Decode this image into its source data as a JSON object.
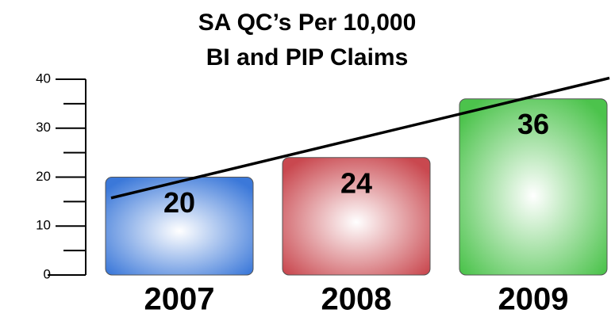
{
  "chart_data": {
    "type": "bar",
    "title": [
      "SA QC’s Per 10,000",
      "BI and PIP Claims"
    ],
    "categories": [
      "2007",
      "2008",
      "2009"
    ],
    "values": [
      20,
      24,
      36
    ],
    "colors": [
      "#3b78d9",
      "#c9484f",
      "#4cc34c"
    ],
    "ylim": [
      0,
      40
    ],
    "yticks": [
      0,
      10,
      20,
      30,
      40
    ],
    "yminor_ticks": [
      5,
      15,
      25,
      35
    ],
    "trendline": {
      "values": [
        19.1,
        27.8,
        36.5
      ],
      "color": "#000000"
    }
  }
}
